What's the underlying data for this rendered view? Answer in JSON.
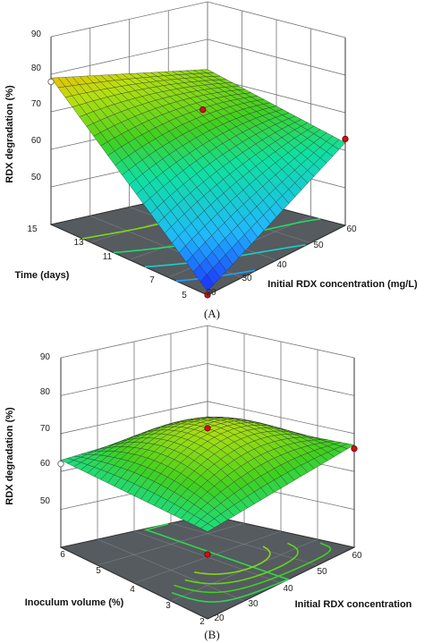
{
  "chart_data": [
    {
      "type": "surface",
      "panel_label": "(A)",
      "zlabel": "RDX degradation (%)",
      "xlabel": "Initial RDX concentration (mg/L)",
      "ylabel": "Time (days)",
      "zlim": [
        40,
        90
      ],
      "zticks": [
        "50",
        "60",
        "70",
        "80",
        "90"
      ],
      "xticks": [
        "20",
        "30",
        "40",
        "50",
        "60"
      ],
      "yticks": [
        "5",
        "7",
        "11",
        "13",
        "15"
      ],
      "xlim": [
        20,
        60
      ],
      "ylim": [
        5,
        15
      ],
      "corners": [
        {
          "x": 20,
          "y": 15,
          "z": 79
        },
        {
          "x": 60,
          "y": 15,
          "z": 72
        },
        {
          "x": 60,
          "y": 5,
          "z": 62
        },
        {
          "x": 20,
          "y": 5,
          "z": 41
        }
      ],
      "points": [
        {
          "x": 20,
          "y": 15,
          "z": 78,
          "style": "open"
        },
        {
          "x": 40,
          "y": 10,
          "z": 73,
          "style": "filled"
        },
        {
          "x": 60,
          "y": 5,
          "z": 63,
          "style": "filled"
        },
        {
          "x": 20,
          "y": 5,
          "z": 40,
          "style": "filled"
        }
      ],
      "grid": true
    },
    {
      "type": "surface",
      "panel_label": "(B)",
      "zlabel": "RDX degradation (%)",
      "xlabel": "Initial RDX concentration",
      "ylabel": "Inoculum volume (%)",
      "zlim": [
        40,
        90
      ],
      "zticks": [
        "50",
        "60",
        "70",
        "80",
        "90"
      ],
      "xticks": [
        "20",
        "30",
        "40",
        "50",
        "60"
      ],
      "yticks": [
        "2",
        "3",
        "4",
        "5",
        "6"
      ],
      "xlim": [
        20,
        60
      ],
      "ylim": [
        2,
        6
      ],
      "corners": [
        {
          "x": 20,
          "y": 6,
          "z": 63
        },
        {
          "x": 60,
          "y": 6,
          "z": 66
        },
        {
          "x": 60,
          "y": 2,
          "z": 67
        },
        {
          "x": 20,
          "y": 2,
          "z": 63
        }
      ],
      "center_z": 74,
      "points": [
        {
          "x": 20,
          "y": 6,
          "z": 62,
          "style": "open"
        },
        {
          "x": 40,
          "y": 4,
          "z": 74,
          "style": "filled"
        },
        {
          "x": 60,
          "y": 2,
          "z": 66,
          "style": "filled"
        },
        {
          "x": 20,
          "y": 2,
          "z": 57,
          "style": "filled"
        }
      ],
      "grid": true
    }
  ]
}
